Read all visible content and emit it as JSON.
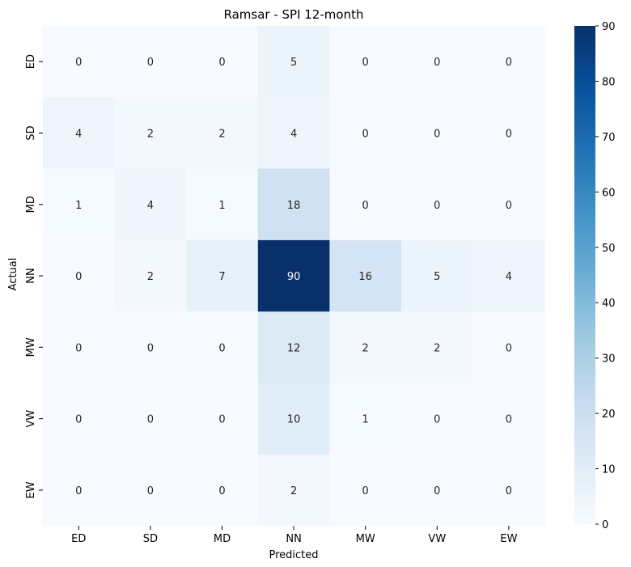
{
  "chart_data": {
    "type": "heatmap",
    "title": "Ramsar - SPI 12-month",
    "xlabel": "Predicted",
    "ylabel": "Actual",
    "x_categories": [
      "ED",
      "SD",
      "MD",
      "NN",
      "MW",
      "VW",
      "EW"
    ],
    "y_categories": [
      "ED",
      "SD",
      "MD",
      "NN",
      "MW",
      "VW",
      "EW"
    ],
    "values": [
      [
        0,
        0,
        0,
        5,
        0,
        0,
        0
      ],
      [
        4,
        2,
        2,
        4,
        0,
        0,
        0
      ],
      [
        1,
        4,
        1,
        18,
        0,
        0,
        0
      ],
      [
        0,
        2,
        7,
        90,
        16,
        5,
        4
      ],
      [
        0,
        0,
        0,
        12,
        2,
        2,
        0
      ],
      [
        0,
        0,
        0,
        10,
        1,
        0,
        0
      ],
      [
        0,
        0,
        0,
        2,
        0,
        0,
        0
      ]
    ],
    "colorbar": {
      "min": 0,
      "max": 90,
      "ticks": [
        "0",
        "10",
        "20",
        "30",
        "40",
        "50",
        "60",
        "70",
        "80",
        "90"
      ]
    },
    "colormap": "Blues",
    "grid": false
  }
}
